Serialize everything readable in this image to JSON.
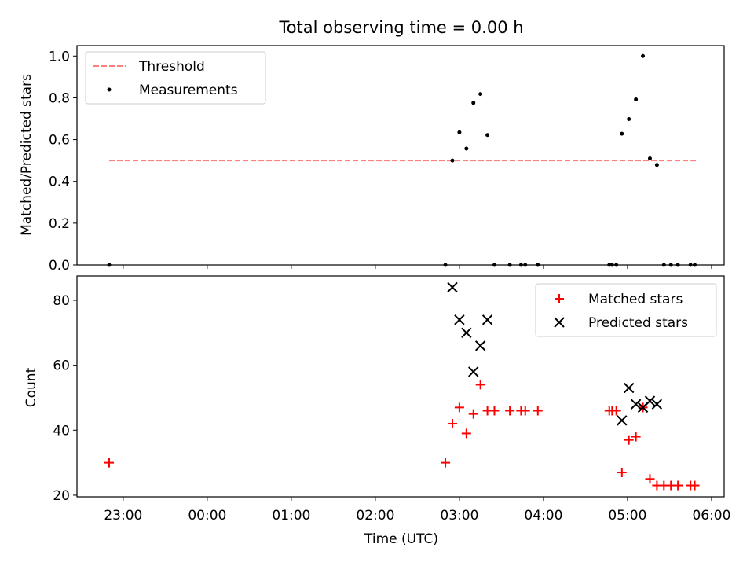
{
  "chart_data": [
    {
      "type": "scatter",
      "title": "Total observing time = 0.00 h",
      "xlabel": "",
      "ylabel": "Matched/Predicted stars",
      "ylim": [
        0,
        1.05
      ],
      "xlim": [
        "22:27",
        "06:09"
      ],
      "yticks": [
        "0.0",
        "0.2",
        "0.4",
        "0.6",
        "0.8",
        "1.0"
      ],
      "legend_position": "top-left",
      "grid": false,
      "threshold": {
        "name": "Threshold",
        "y": 0.5,
        "x": [
          "22:50",
          "05:50"
        ],
        "color": "#ff7f7f"
      },
      "series": [
        {
          "name": "Measurements",
          "color": "#000000",
          "points": [
            {
              "x": "22:50",
              "y": 0
            },
            {
              "x": "02:50",
              "y": 0
            },
            {
              "x": "02:55",
              "y": 0.5
            },
            {
              "x": "03:00",
              "y": 0.635
            },
            {
              "x": "03:05",
              "y": 0.557
            },
            {
              "x": "03:10",
              "y": 0.776
            },
            {
              "x": "03:15",
              "y": 0.818
            },
            {
              "x": "03:20",
              "y": 0.622
            },
            {
              "x": "03:25",
              "y": 0
            },
            {
              "x": "03:36",
              "y": 0
            },
            {
              "x": "03:44",
              "y": 0
            },
            {
              "x": "03:47",
              "y": 0
            },
            {
              "x": "03:56",
              "y": 0
            },
            {
              "x": "04:47",
              "y": 0
            },
            {
              "x": "04:49",
              "y": 0
            },
            {
              "x": "04:52",
              "y": 0
            },
            {
              "x": "04:56",
              "y": 0.628
            },
            {
              "x": "05:01",
              "y": 0.698
            },
            {
              "x": "05:06",
              "y": 0.792
            },
            {
              "x": "05:11",
              "y": 1.0
            },
            {
              "x": "05:16",
              "y": 0.51
            },
            {
              "x": "05:21",
              "y": 0.479
            },
            {
              "x": "05:26",
              "y": 0
            },
            {
              "x": "05:31",
              "y": 0
            },
            {
              "x": "05:36",
              "y": 0
            },
            {
              "x": "05:45",
              "y": 0
            },
            {
              "x": "05:48",
              "y": 0
            }
          ]
        }
      ]
    },
    {
      "type": "scatter",
      "title": "",
      "xlabel": "Time (UTC)",
      "ylabel": "Count",
      "ylim": [
        19.5,
        87.5
      ],
      "xlim": [
        "22:27",
        "06:09"
      ],
      "yticks": [
        "20",
        "40",
        "60",
        "80"
      ],
      "xticks": [
        "23:00",
        "00:00",
        "01:00",
        "02:00",
        "03:00",
        "04:00",
        "05:00",
        "06:00"
      ],
      "legend_position": "top-right",
      "grid": false,
      "series": [
        {
          "name": "Matched stars",
          "color": "#ff0000",
          "marker": "plus",
          "points": [
            {
              "x": "22:50",
              "y": 30
            },
            {
              "x": "02:50",
              "y": 30
            },
            {
              "x": "02:55",
              "y": 42
            },
            {
              "x": "03:00",
              "y": 47
            },
            {
              "x": "03:05",
              "y": 39
            },
            {
              "x": "03:10",
              "y": 45
            },
            {
              "x": "03:15",
              "y": 54
            },
            {
              "x": "03:20",
              "y": 46
            },
            {
              "x": "03:25",
              "y": 46
            },
            {
              "x": "03:36",
              "y": 46
            },
            {
              "x": "03:44",
              "y": 46
            },
            {
              "x": "03:47",
              "y": 46
            },
            {
              "x": "03:56",
              "y": 46
            },
            {
              "x": "04:47",
              "y": 46
            },
            {
              "x": "04:49",
              "y": 46
            },
            {
              "x": "04:52",
              "y": 46
            },
            {
              "x": "04:56",
              "y": 27
            },
            {
              "x": "05:01",
              "y": 37
            },
            {
              "x": "05:06",
              "y": 38
            },
            {
              "x": "05:11",
              "y": 47
            },
            {
              "x": "05:16",
              "y": 25
            },
            {
              "x": "05:21",
              "y": 23
            },
            {
              "x": "05:26",
              "y": 23
            },
            {
              "x": "05:31",
              "y": 23
            },
            {
              "x": "05:36",
              "y": 23
            },
            {
              "x": "05:45",
              "y": 23
            },
            {
              "x": "05:48",
              "y": 23
            }
          ]
        },
        {
          "name": "Predicted stars",
          "color": "#000000",
          "marker": "x",
          "points": [
            {
              "x": "02:55",
              "y": 84
            },
            {
              "x": "03:00",
              "y": 74
            },
            {
              "x": "03:05",
              "y": 70
            },
            {
              "x": "03:10",
              "y": 58
            },
            {
              "x": "03:15",
              "y": 66
            },
            {
              "x": "03:20",
              "y": 74
            },
            {
              "x": "04:56",
              "y": 43
            },
            {
              "x": "05:01",
              "y": 53
            },
            {
              "x": "05:06",
              "y": 48
            },
            {
              "x": "05:11",
              "y": 47
            },
            {
              "x": "05:16",
              "y": 49
            },
            {
              "x": "05:21",
              "y": 48
            }
          ]
        }
      ]
    }
  ]
}
